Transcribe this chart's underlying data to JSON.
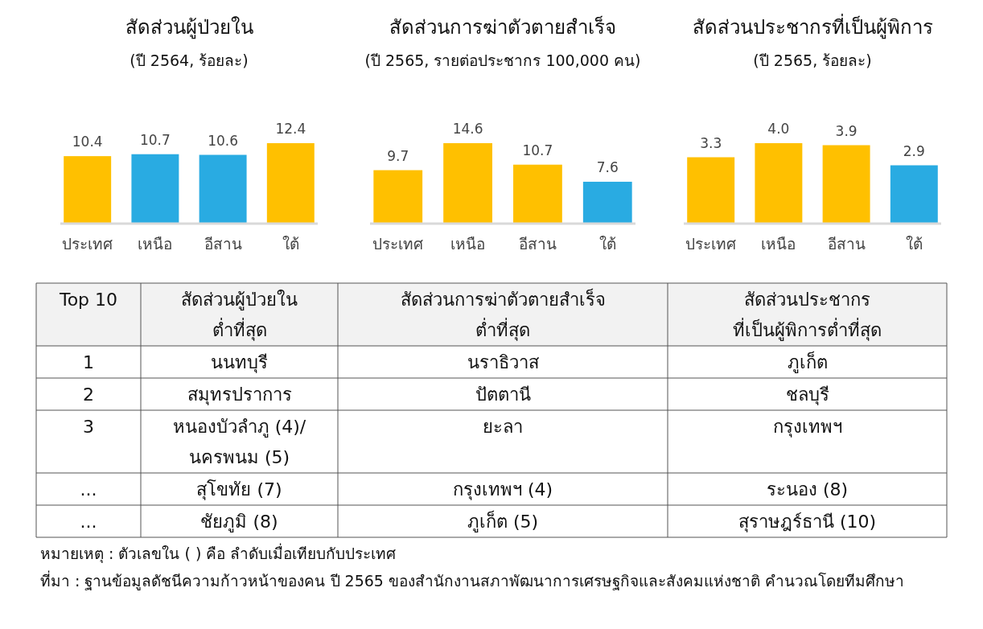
{
  "chart_data": [
    {
      "type": "bar",
      "title": "สัดส่วนผู้ป่วยใน",
      "subtitle": "(ปี 2564, ร้อยละ)",
      "categories": [
        "ประเทศ",
        "เหนือ",
        "อีสาน",
        "ใต้"
      ],
      "values": [
        10.4,
        10.7,
        10.6,
        12.4
      ],
      "colors": [
        "#ffc000",
        "#29abe2",
        "#29abe2",
        "#ffc000"
      ],
      "data_labels": true
    },
    {
      "type": "bar",
      "title": "สัดส่วนการฆ่าตัวตายสำเร็จ",
      "subtitle": "(ปี 2565, รายต่อประชากร 100,000 คน)",
      "categories": [
        "ประเทศ",
        "เหนือ",
        "อีสาน",
        "ใต้"
      ],
      "values": [
        9.7,
        14.6,
        10.7,
        7.6
      ],
      "colors": [
        "#ffc000",
        "#ffc000",
        "#ffc000",
        "#29abe2"
      ],
      "data_labels": true
    },
    {
      "type": "bar",
      "title": "สัดส่วนประชากรที่เป็นผู้พิการ",
      "subtitle": "(ปี 2565, ร้อยละ)",
      "categories": [
        "ประเทศ",
        "เหนือ",
        "อีสาน",
        "ใต้"
      ],
      "values": [
        3.3,
        4.0,
        3.9,
        2.9
      ],
      "value_labels": [
        "3.3",
        "4.0",
        "3.9",
        "2.9"
      ],
      "colors": [
        "#ffc000",
        "#ffc000",
        "#ffc000",
        "#29abe2"
      ]
    },
    {
      "type": "other",
      "ylabel": "Top 10",
      "categories": [
        "สัดส่วนผู้ป่วยใน\nต่ำที่สุด",
        "สัดส่วนการฆ่าตัวตายสำเร็จ\nต่ำที่สุด",
        "สัดส่วนประชากร\nที่เป็นผู้พิการต่ำที่สุด"
      ],
      "y_categories": [
        "1",
        "2",
        "3",
        "...",
        "..."
      ],
      "cell_labels": [
        [
          "นนทบุรี",
          "นราธิวาส",
          "ภูเก็ต"
        ],
        [
          "สมุทรปราการ",
          "ปัตตานี",
          "ชลบุรี"
        ],
        [
          "หนองบัวลำภู (4)/\nนครพนม (5)",
          "ยะลา",
          "กรุงเทพฯ"
        ],
        [
          "สุโขทัย (7)",
          "กรุงเทพฯ (4)",
          "ระนอง (8)"
        ],
        [
          "ชัยภูมิ (8)",
          "ภูเก็ต (5)",
          "สุราษฎร์ธานี (10)"
        ]
      ],
      "annotations": [
        "หมายเหตุ : ตัวเลขใน ( ) คือ ลำดับเมื่อเทียบกับประเทศ",
        "ที่มา : ฐานข้อมูลดัชนีความก้าวหน้าของคน ปี 2565 ของสำนักงานสภาพัฒนาการเศรษฐกิจและสังคมแห่งชาติ คำนวณโดยทีมศึกษา"
      ]
    }
  ]
}
